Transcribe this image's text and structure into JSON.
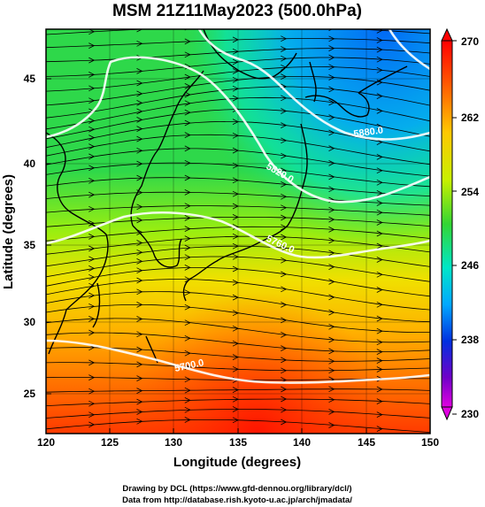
{
  "title": "MSM 21Z11May2023 (500.0hPa)",
  "x_axis": {
    "label": "Longitude (degrees)",
    "ticks": [
      "120",
      "125",
      "130",
      "135",
      "140",
      "145",
      "150"
    ]
  },
  "y_axis": {
    "label": "Latitude  (degrees)",
    "ticks": [
      "25",
      "30",
      "35",
      "40",
      "45"
    ]
  },
  "colorbar": {
    "labels": [
      "270",
      "262",
      "254",
      "246",
      "238",
      "230"
    ],
    "palette": [
      "#ff0000",
      "#ff7a00",
      "#ffd200",
      "#c8f000",
      "#3ad23a",
      "#00e6c8",
      "#00a0ff",
      "#0028d2",
      "#8000c8",
      "#e000e0"
    ]
  },
  "contours": {
    "labels": [
      "5700.0",
      "5760.0",
      "5820.0",
      "5880.0"
    ]
  },
  "credits": {
    "line1": "Drawing by DCL (https://www.gfd-dennou.org/library/dcl/)",
    "line2": "Data from http://database.rish.kyoto-u.ac.jp/arch/jmadata/"
  },
  "chart_data": {
    "type": "heatmap",
    "title": "MSM 21Z11May2023 (500.0hPa)",
    "xlabel": "Longitude (degrees)",
    "ylabel": "Latitude  (degrees)",
    "xlim": [
      120,
      150
    ],
    "ylim": [
      22.4,
      47.6
    ],
    "color_range": [
      230,
      270
    ],
    "contour_levels": [
      5700,
      5760,
      5820,
      5880
    ],
    "grid": true
  }
}
